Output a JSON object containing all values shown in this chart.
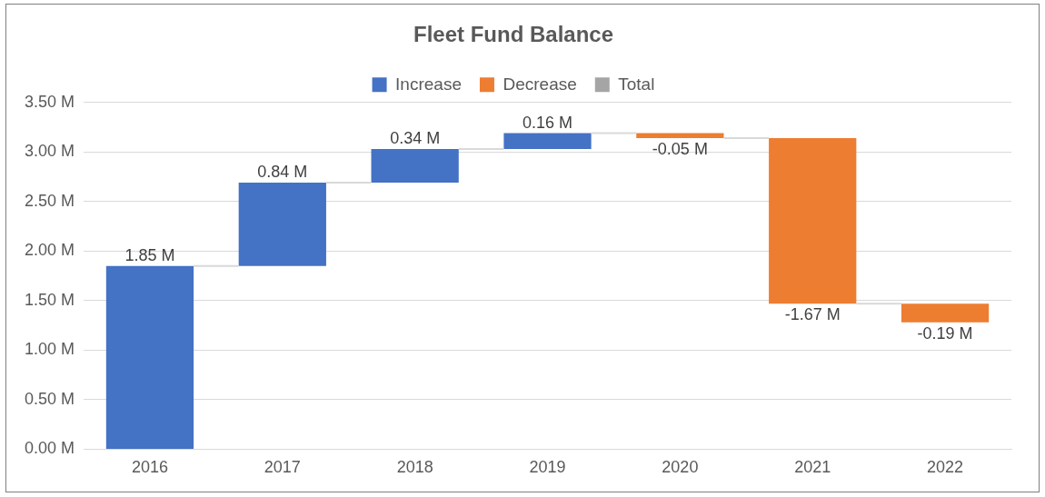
{
  "chart_data": {
    "type": "bar",
    "title": "Fleet Fund Balance",
    "categories": [
      "2016",
      "2017",
      "2018",
      "2019",
      "2020",
      "2021",
      "2022"
    ],
    "series": [
      {
        "name": "Increase",
        "color": "#4472c4",
        "base": [
          0,
          1.85,
          2.69,
          3.03,
          null,
          null,
          null
        ],
        "values": [
          1.85,
          0.84,
          0.34,
          0.16,
          null,
          null,
          null
        ],
        "value_labels": [
          "1.85 M",
          "0.84 M",
          "0.34 M",
          "0.16 M",
          null,
          null,
          null
        ]
      },
      {
        "name": "Decrease",
        "color": "#ed7d31",
        "base": [
          null,
          null,
          null,
          null,
          3.19,
          3.14,
          1.47
        ],
        "values": [
          null,
          null,
          null,
          null,
          -0.05,
          -1.67,
          -0.19
        ],
        "value_labels": [
          null,
          null,
          null,
          null,
          "-0.05 M",
          "-1.67 M",
          "-0.19 M"
        ]
      },
      {
        "name": "Total",
        "color": "#a5a5a5",
        "values": [
          null,
          null,
          null,
          null,
          null,
          null,
          null
        ]
      }
    ],
    "ylim": [
      0,
      3.5
    ],
    "yticks": [
      {
        "value": 0,
        "label": "0.00 M"
      },
      {
        "value": 0.5,
        "label": "0.50 M"
      },
      {
        "value": 1,
        "label": "1.00 M"
      },
      {
        "value": 1.5,
        "label": "1.50 M"
      },
      {
        "value": 2,
        "label": "2.00 M"
      },
      {
        "value": 2.5,
        "label": "2.50 M"
      },
      {
        "value": 3,
        "label": "3.00 M"
      },
      {
        "value": 3.5,
        "label": "3.50 M"
      }
    ],
    "grid": "y",
    "legend": "top"
  }
}
